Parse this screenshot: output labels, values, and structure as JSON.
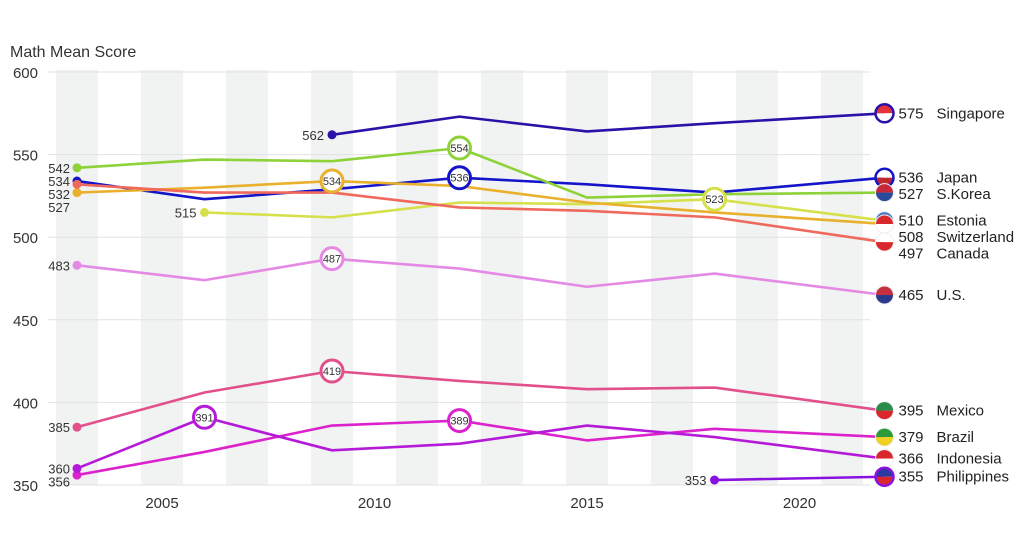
{
  "chart_data": {
    "type": "line",
    "title": "",
    "ylabel": "Math Mean Score",
    "xlabel": "",
    "xlim": [
      2002.3,
      2021.5
    ],
    "ylim": [
      350,
      600
    ],
    "x_ticks": [
      2005,
      2010,
      2015,
      2020
    ],
    "y_ticks": [
      350,
      400,
      450,
      500,
      550,
      600
    ],
    "grid": "horizontal",
    "x": [
      2003,
      2006,
      2009,
      2012,
      2015,
      2018,
      2022
    ],
    "series": [
      {
        "name": "Singapore",
        "color": "#2a12a8",
        "flag": [
          "#e8303a",
          "#ffffff"
        ],
        "values": [
          null,
          null,
          562,
          573,
          564,
          569,
          575
        ],
        "highlight": []
      },
      {
        "name": "Japan",
        "color": "#1414c8",
        "flag": [
          "#ffffff",
          "#c0282e"
        ],
        "values": [
          534,
          523,
          529,
          536,
          532,
          527,
          536
        ],
        "highlight": [
          2012
        ]
      },
      {
        "name": "S.Korea",
        "color": "#8ed23a",
        "flag": [
          "#c8283a",
          "#2a4a9a"
        ],
        "values": [
          542,
          547,
          546,
          554,
          524,
          526,
          527
        ],
        "highlight": [
          2012
        ]
      },
      {
        "name": "Estonia",
        "color": "#d6e04a",
        "flag": [
          "#4a7ac0",
          "#111111"
        ],
        "values": [
          null,
          515,
          512,
          521,
          520,
          523,
          510
        ],
        "highlight": [
          2018
        ]
      },
      {
        "name": "Switzerland",
        "color": "#e8b02c",
        "flag": [
          "#d8282e",
          "#ffffff"
        ],
        "values": [
          527,
          530,
          534,
          531,
          521,
          515,
          508
        ],
        "highlight": [
          2009
        ]
      },
      {
        "name": "Canada",
        "color": "#ef6a5c",
        "flag": [
          "#ffffff",
          "#d8282e"
        ],
        "values": [
          532,
          527,
          527,
          518,
          516,
          512,
          497
        ],
        "highlight": []
      },
      {
        "name": "U.S.",
        "color": "#e48ae4",
        "flag": [
          "#c83040",
          "#2a3a8a"
        ],
        "values": [
          483,
          474,
          487,
          481,
          470,
          478,
          465
        ],
        "highlight": [
          2009
        ]
      },
      {
        "name": "Mexico",
        "color": "#e2508c",
        "flag": [
          "#2a8a4a",
          "#d8282e"
        ],
        "values": [
          385,
          406,
          419,
          413,
          408,
          409,
          395
        ],
        "highlight": [
          2009
        ]
      },
      {
        "name": "Brazil",
        "color": "#dc22cc",
        "flag": [
          "#2a9a3a",
          "#f0d020"
        ],
        "values": [
          356,
          370,
          386,
          389,
          377,
          384,
          379
        ],
        "highlight": [
          2012
        ]
      },
      {
        "name": "Indonesia",
        "color": "#b41ad8",
        "flag": [
          "#d8282e",
          "#ffffff"
        ],
        "values": [
          360,
          391,
          371,
          375,
          386,
          379,
          366
        ],
        "highlight": [
          2006
        ]
      },
      {
        "name": "Philippines",
        "color": "#8a12e0",
        "flag": [
          "#2a3aa0",
          "#d8282e"
        ],
        "values": [
          null,
          null,
          null,
          null,
          null,
          353,
          355
        ],
        "highlight": []
      }
    ]
  }
}
